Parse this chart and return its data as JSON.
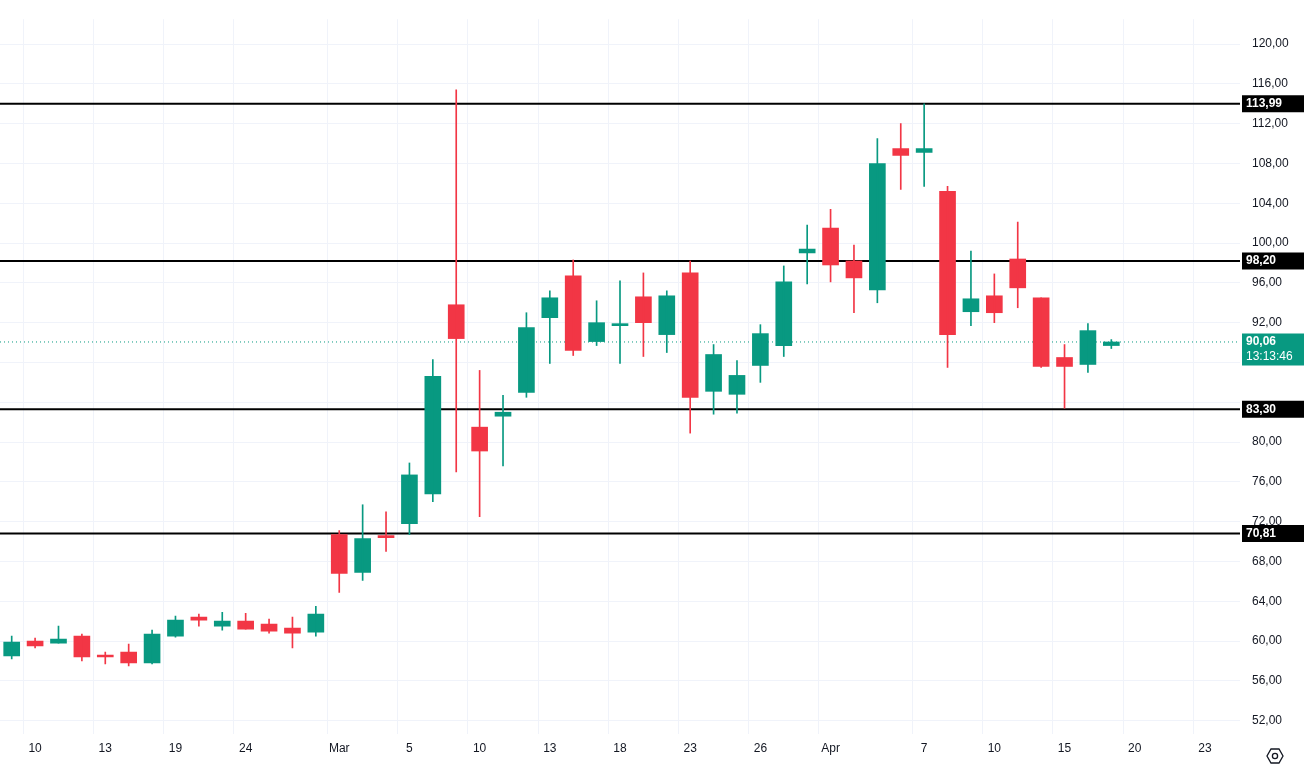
{
  "chart_data": {
    "type": "candlestick",
    "categories": [
      null,
      "10",
      null,
      null,
      "13",
      null,
      null,
      "19",
      null,
      null,
      "24",
      null,
      null,
      null,
      "Mar",
      null,
      null,
      "5",
      null,
      null,
      "10",
      null,
      null,
      "13",
      null,
      null,
      "18",
      null,
      null,
      "23",
      null,
      null,
      "26",
      null,
      null,
      "Apr",
      null,
      null,
      null,
      "7",
      null,
      null,
      "10",
      null,
      null,
      "15",
      null,
      null,
      "20",
      null,
      null,
      "23",
      null
    ],
    "ohlc": [
      [
        58.5,
        60.5,
        58.2,
        59.9
      ],
      [
        60.0,
        60.3,
        59.3,
        59.5
      ],
      [
        59.8,
        61.5,
        59.8,
        60.2
      ],
      [
        60.5,
        60.7,
        58.0,
        58.4
      ],
      [
        58.6,
        58.9,
        57.7,
        58.4
      ],
      [
        58.9,
        59.7,
        57.5,
        57.8
      ],
      [
        57.8,
        61.1,
        57.7,
        60.7
      ],
      [
        60.5,
        62.5,
        60.4,
        62.1
      ],
      [
        62.4,
        62.7,
        61.5,
        62.1
      ],
      [
        61.5,
        62.9,
        61.1,
        62.0
      ],
      [
        62.0,
        62.8,
        61.2,
        61.2
      ],
      [
        61.7,
        62.2,
        60.8,
        61.0
      ],
      [
        61.3,
        62.4,
        59.3,
        60.8
      ],
      [
        60.9,
        63.5,
        60.5,
        62.7
      ],
      [
        70.7,
        71.1,
        64.9,
        66.8
      ],
      [
        66.9,
        73.7,
        66.1,
        70.3
      ],
      [
        70.5,
        73.0,
        69.0,
        70.4
      ],
      [
        71.8,
        77.9,
        70.7,
        76.7
      ],
      [
        74.8,
        88.3,
        74.0,
        86.6
      ],
      [
        93.8,
        115.4,
        77.0,
        90.4
      ],
      [
        81.5,
        87.2,
        72.5,
        79.1
      ],
      [
        82.6,
        84.7,
        77.6,
        83.0
      ],
      [
        85.0,
        93.0,
        84.5,
        91.5
      ],
      [
        92.5,
        95.2,
        87.9,
        94.5
      ],
      [
        96.7,
        98.3,
        88.7,
        89.2
      ],
      [
        90.1,
        94.2,
        89.7,
        92.0
      ],
      [
        91.7,
        96.2,
        87.9,
        91.9
      ],
      [
        94.6,
        97.0,
        88.6,
        92.0
      ],
      [
        90.8,
        95.2,
        89.0,
        94.7
      ],
      [
        97.0,
        98.2,
        80.9,
        84.5
      ],
      [
        85.1,
        89.8,
        82.8,
        88.8
      ],
      [
        84.8,
        88.2,
        82.9,
        86.7
      ],
      [
        87.7,
        91.8,
        86.0,
        90.9
      ],
      [
        89.7,
        97.7,
        88.6,
        96.1
      ],
      [
        99.0,
        101.8,
        95.9,
        99.4
      ],
      [
        101.5,
        103.4,
        96.1,
        97.8
      ],
      [
        98.2,
        99.8,
        93.0,
        96.5
      ],
      [
        95.3,
        110.5,
        94.0,
        108.0
      ],
      [
        109.5,
        112.0,
        105.4,
        108.8
      ],
      [
        109.1,
        114.0,
        105.7,
        109.5
      ],
      [
        105.2,
        105.7,
        87.5,
        90.8
      ],
      [
        93.1,
        99.2,
        91.7,
        94.4
      ],
      [
        94.7,
        96.9,
        92.0,
        93.0
      ],
      [
        98.4,
        102.1,
        93.5,
        95.5
      ],
      [
        94.5,
        94.5,
        87.5,
        87.6
      ],
      [
        88.5,
        89.8,
        83.4,
        87.6
      ],
      [
        87.8,
        91.9,
        87.0,
        91.2
      ],
      [
        89.7,
        90.3,
        89.4,
        90.06
      ],
      null,
      null,
      null,
      null,
      null
    ],
    "colors": [
      "#089981",
      "#f23645",
      "#089981",
      "#f23645",
      "#f23645",
      "#f23645",
      "#089981",
      "#089981",
      "#f23645",
      "#089981",
      "#f23645",
      "#f23645",
      "#f23645",
      "#089981",
      "#f23645",
      "#089981",
      "#f23645",
      "#089981",
      "#089981",
      "#f23645",
      "#f23645",
      "#089981",
      "#089981",
      "#089981",
      "#f23645",
      "#089981",
      "#089981",
      "#f23645",
      "#089981",
      "#f23645",
      "#089981",
      "#089981",
      "#089981",
      "#089981",
      "#089981",
      "#f23645",
      "#f23645",
      "#089981",
      "#f23645",
      "#089981",
      "#f23645",
      "#089981",
      "#f23645",
      "#f23645",
      "#f23645",
      "#f23645",
      "#089981",
      "#089981",
      null,
      null,
      null,
      null,
      null
    ],
    "ylim": [
      50.7,
      122.5
    ],
    "yticks": [
      {
        "value": 52,
        "label": "52,00"
      },
      {
        "value": 56,
        "label": "56,00"
      },
      {
        "value": 60,
        "label": "60,00"
      },
      {
        "value": 64,
        "label": "64,00"
      },
      {
        "value": 68,
        "label": "68,00"
      },
      {
        "value": 72,
        "label": "72,00"
      },
      {
        "value": 76,
        "label": "76,00"
      },
      {
        "value": 80,
        "label": "80,00"
      },
      {
        "value": 84,
        "label": null
      },
      {
        "value": 88,
        "label": null
      },
      {
        "value": 92,
        "label": "92,00"
      },
      {
        "value": 96,
        "label": "96,00"
      },
      {
        "value": 100,
        "label": "100,00"
      },
      {
        "value": 104,
        "label": "104,00"
      },
      {
        "value": 108,
        "label": "108,00"
      },
      {
        "value": 112,
        "label": "112,00"
      },
      {
        "value": 116,
        "label": "116,00"
      },
      {
        "value": 120,
        "label": "120,00"
      }
    ],
    "ref_lines": [
      {
        "axis": "y",
        "value": 113.99,
        "label": "113,99",
        "color": "#000000",
        "line_style": "solid"
      },
      {
        "axis": "y",
        "value": 98.2,
        "label": "98,20",
        "color": "#000000",
        "line_style": "solid"
      },
      {
        "axis": "y",
        "value": 83.3,
        "label": "83,30",
        "color": "#000000",
        "line_style": "solid"
      },
      {
        "axis": "y",
        "value": 70.81,
        "label": "70,81",
        "color": "#000000",
        "line_style": "solid"
      },
      {
        "axis": "y",
        "value": 90.06,
        "label": "90,06",
        "color": "#089981",
        "line_style": "dotted"
      }
    ],
    "annotations": [
      "13:13:46"
    ],
    "grid": true,
    "legend": false
  }
}
